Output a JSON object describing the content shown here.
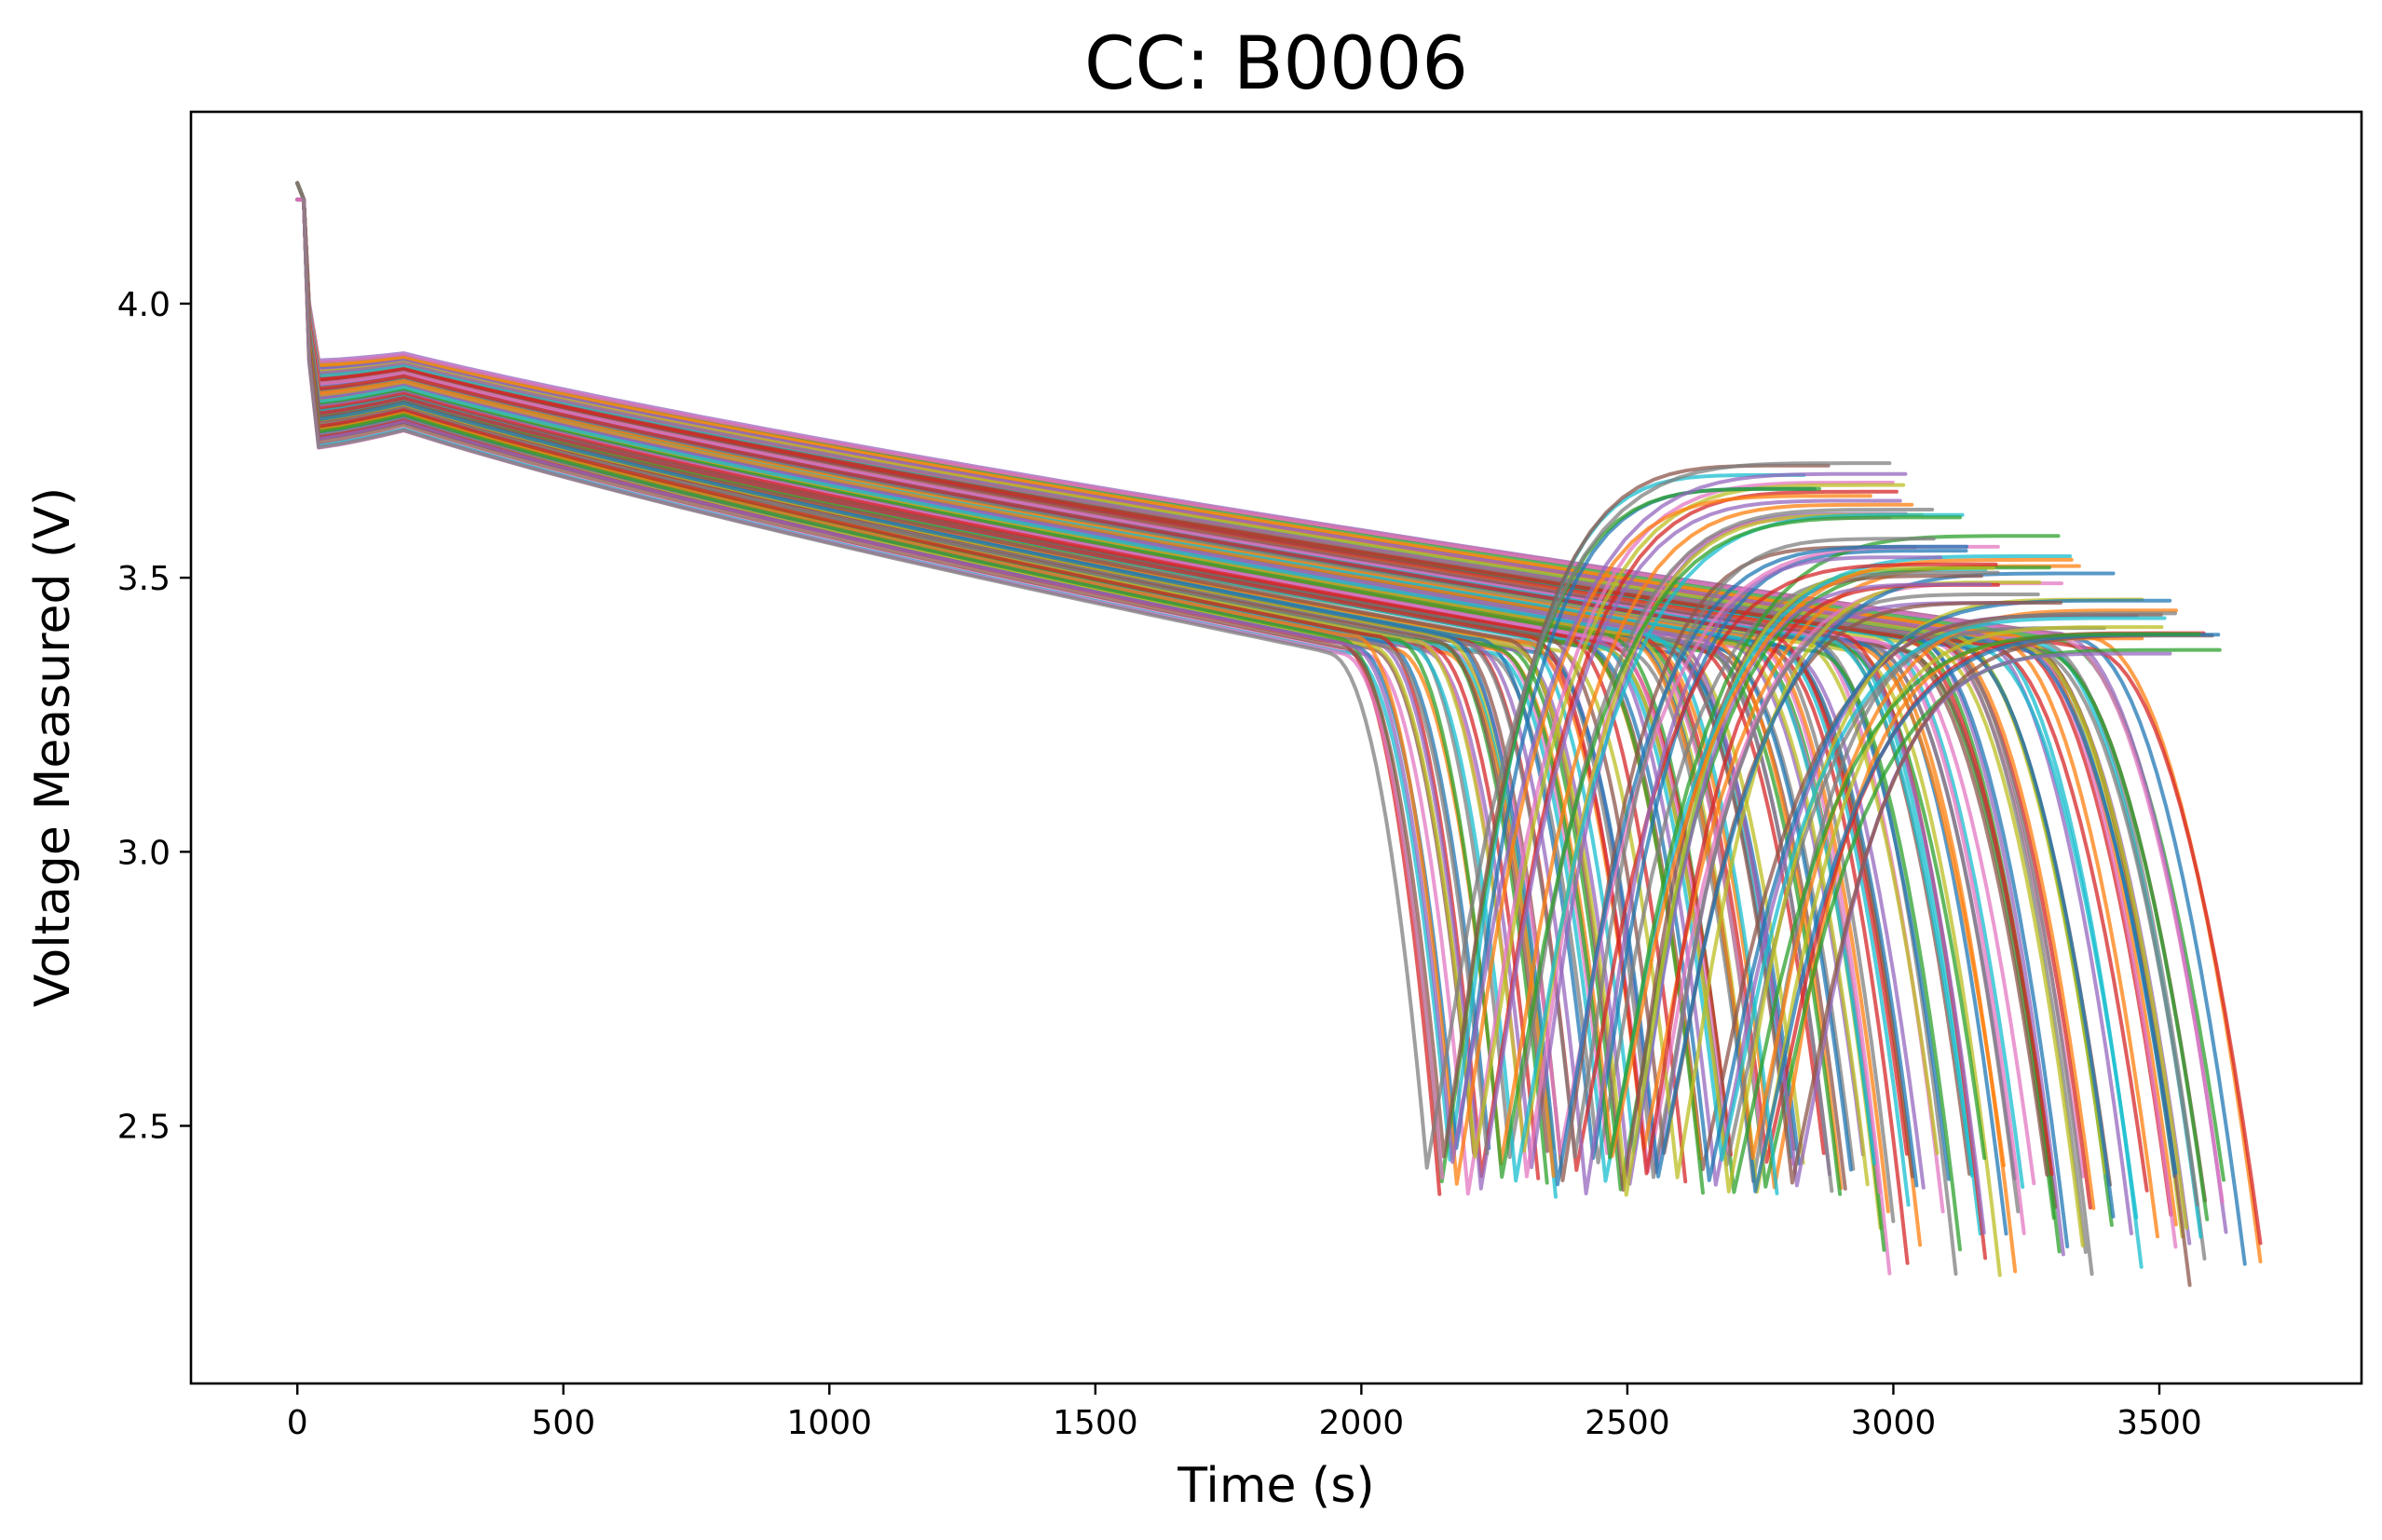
{
  "chart_data": {
    "type": "line",
    "title": "CC: B0006",
    "xlabel": "Time (s)",
    "ylabel": "Voltage Measured (V)",
    "xlim": [
      -200,
      3880
    ],
    "ylim": [
      2.03,
      4.35
    ],
    "xticks": [
      0,
      500,
      1000,
      1500,
      2000,
      2500,
      3000,
      3500
    ],
    "yticks": [
      2.5,
      3.0,
      3.5,
      4.0
    ],
    "xtick_labels": [
      "0",
      "500",
      "1000",
      "1500",
      "2000",
      "2500",
      "3000",
      "3500"
    ],
    "ytick_labels": [
      "2.5",
      "3.0",
      "3.5",
      "4.0"
    ],
    "grid": false,
    "legend": "none",
    "num_series": 168,
    "series_colors": [
      "#1f77b4",
      "#ff7f0e",
      "#2ca02c",
      "#d62728",
      "#9467bd",
      "#8c564b",
      "#e377c2",
      "#7f7f7f",
      "#bcbd22",
      "#17becf"
    ],
    "series_description": "Discharge voltage curves over repeated cycles: an initial drop from about 4.2 V, a slow decline, a knee near 3.2–3.4 V, and a steep fall to about 2.1–2.5 V. Early cycles end near 3690 s, late cycles near 2120 s. Some late curves recover from about 2.45 V back up to about 3.4–3.7 V.",
    "representative_series": [
      {
        "x": [
          0,
          10,
          20,
          40,
          100,
          200,
          500,
          1000,
          1500,
          2000,
          2500,
          3000,
          3200,
          3400,
          3500,
          3550,
          3600,
          3650,
          3690
        ],
        "y": [
          4.19,
          4.19,
          4.05,
          3.98,
          3.95,
          3.91,
          3.81,
          3.68,
          3.59,
          3.51,
          3.44,
          3.38,
          3.35,
          3.28,
          3.18,
          3.1,
          2.98,
          2.78,
          2.47
        ]
      },
      {
        "x": [
          0,
          10,
          20,
          40,
          100,
          200,
          500,
          1000,
          1500,
          1800,
          1950,
          2030,
          2070,
          2100,
          2120
        ],
        "y": [
          4.19,
          4.19,
          3.95,
          3.88,
          3.8,
          3.71,
          3.53,
          3.38,
          3.26,
          3.16,
          3.03,
          2.87,
          2.73,
          2.58,
          2.41
        ]
      },
      {
        "x": [
          2130,
          2140,
          2160,
          2200,
          2300,
          2500,
          2700,
          2800
        ],
        "y": [
          2.45,
          2.9,
          3.25,
          3.45,
          3.6,
          3.67,
          3.69,
          3.69
        ]
      }
    ]
  }
}
